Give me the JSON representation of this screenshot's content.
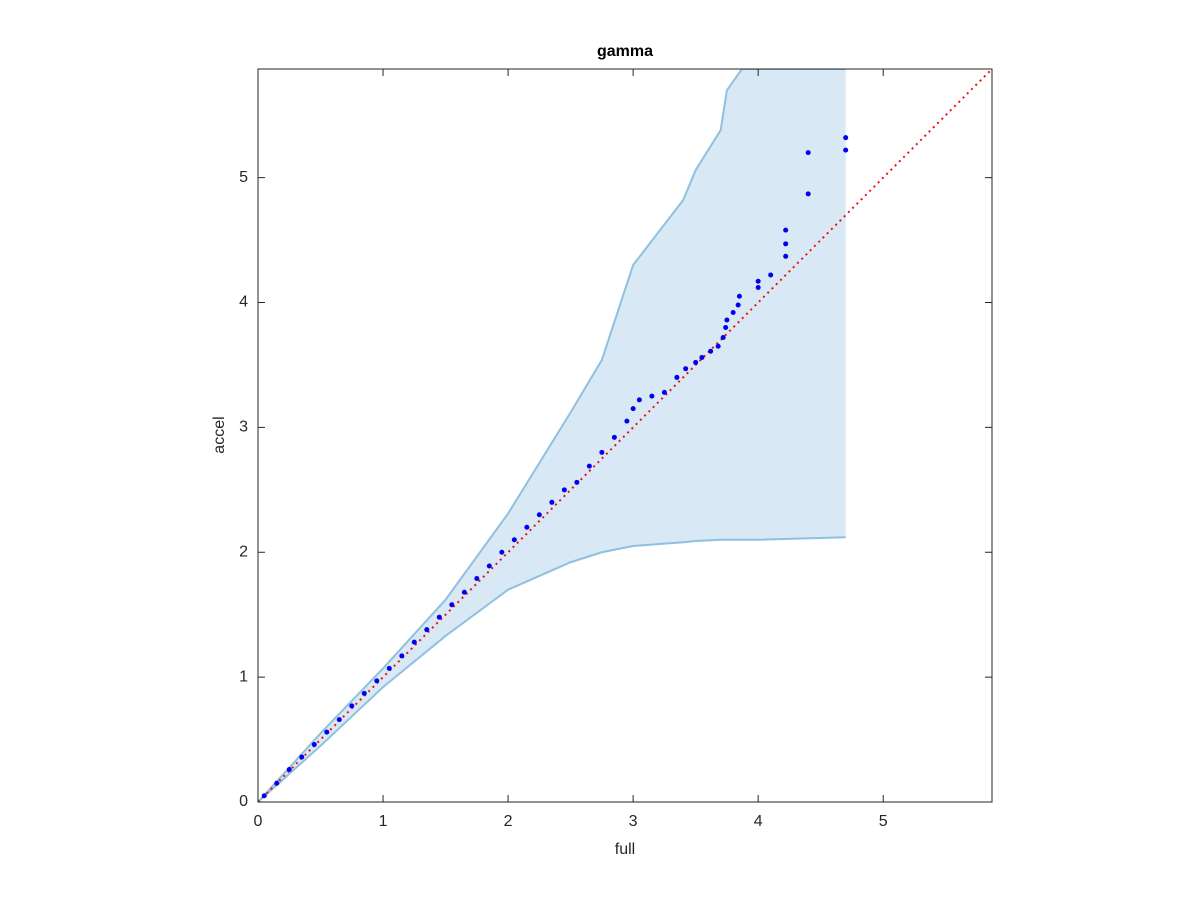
{
  "chart_data": {
    "type": "qq-band",
    "title": "gamma",
    "x_label": "full",
    "y_label": "accel",
    "xlim": [
      0,
      5.87
    ],
    "ylim": [
      0,
      5.87
    ],
    "xticks": [
      0,
      1,
      2,
      3,
      4,
      5
    ],
    "yticks": [
      0,
      1,
      2,
      3,
      4,
      5
    ],
    "band": {
      "color": "#d9e8f5",
      "edge_color": "#8fc0e0",
      "x": [
        0,
        0.5,
        1,
        1.5,
        2,
        2.5,
        2.75,
        3,
        3.4,
        3.5,
        3.7,
        3.75,
        3.87,
        4,
        4.7
      ],
      "upper": [
        0,
        0.55,
        1.07,
        1.62,
        2.31,
        3.12,
        3.54,
        4.3,
        4.82,
        5.06,
        5.38,
        5.7,
        5.87,
        5.87,
        5.87
      ],
      "lower": [
        0,
        0.45,
        0.92,
        1.33,
        1.7,
        1.92,
        2.0,
        2.05,
        2.08,
        2.09,
        2.1,
        2.1,
        2.1,
        2.1,
        2.12
      ]
    },
    "points": {
      "color": "#0000ee",
      "x": [
        0.05,
        0.15,
        0.25,
        0.35,
        0.45,
        0.55,
        0.65,
        0.75,
        0.85,
        0.95,
        1.05,
        1.15,
        1.25,
        1.35,
        1.45,
        1.55,
        1.65,
        1.75,
        1.85,
        1.95,
        2.05,
        2.15,
        2.25,
        2.35,
        2.45,
        2.55,
        2.65,
        2.75,
        2.85,
        2.95,
        3.0,
        3.05,
        3.15,
        3.25,
        3.35,
        3.42,
        3.5,
        3.55,
        3.62,
        3.68,
        3.72,
        3.74,
        3.75,
        3.8,
        3.84,
        3.85,
        4.0,
        4.0,
        4.1,
        4.22,
        4.22,
        4.22,
        4.4,
        4.4,
        4.7,
        4.7
      ],
      "y": [
        0.05,
        0.15,
        0.26,
        0.36,
        0.46,
        0.56,
        0.66,
        0.77,
        0.87,
        0.97,
        1.07,
        1.17,
        1.28,
        1.38,
        1.48,
        1.58,
        1.68,
        1.79,
        1.89,
        2.0,
        2.1,
        2.2,
        2.3,
        2.4,
        2.5,
        2.56,
        2.69,
        2.8,
        2.92,
        3.05,
        3.15,
        3.22,
        3.25,
        3.28,
        3.4,
        3.47,
        3.52,
        3.56,
        3.61,
        3.65,
        3.72,
        3.8,
        3.86,
        3.92,
        3.98,
        4.05,
        4.12,
        4.17,
        4.22,
        4.37,
        4.47,
        4.58,
        4.87,
        5.2,
        5.22,
        5.32
      ]
    },
    "reference_line": {
      "color": "#ee1111",
      "x": [
        0,
        5.87
      ],
      "y": [
        0,
        5.87
      ]
    }
  }
}
